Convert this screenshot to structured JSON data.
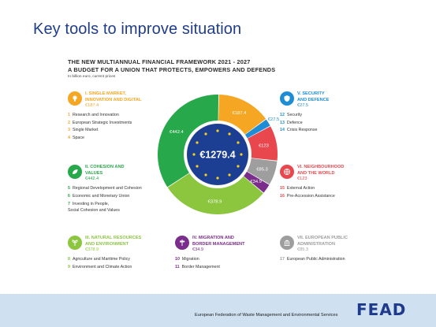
{
  "slide": {
    "title": "Key tools to improve situation"
  },
  "mff": {
    "heading_line1": "THE NEW MULTIANNUAL FINANCIAL FRAMEWORK 2021 - 2027",
    "heading_line2": "A BUDGET FOR A UNION THAT PROTECTS, EMPOWERS AND DEFENDS",
    "units": "In billion euro, current prices"
  },
  "blocks": {
    "single_market": {
      "title_line1": "I. SINGLE MARKET,",
      "title_line2": "INNOVATION AND DIGITAL",
      "amount": "€187.4",
      "color": "#f5a623",
      "icon": "lightbulb-icon",
      "items": [
        {
          "num": "1",
          "label": "Research and Innovation"
        },
        {
          "num": "2",
          "label": "European Strategic Investments"
        },
        {
          "num": "3",
          "label": "Single Market"
        },
        {
          "num": "4",
          "label": "Space"
        }
      ]
    },
    "cohesion": {
      "title_line1": "II. COHESION AND",
      "title_line2": "VALUES",
      "amount": "€442.4",
      "color": "#27a84a",
      "icon": "leaf-icon",
      "items": [
        {
          "num": "5",
          "label": "Regional Development and Cohesion"
        },
        {
          "num": "6",
          "label": "Economic and Monetary Union"
        },
        {
          "num": "7",
          "label": "Investing in People,",
          "label2": "Social Cohesion and Values"
        }
      ]
    },
    "natural_resources": {
      "title_line1": "III. NATURAL RESOURCES",
      "title_line2": "AND ENVIRONMENT",
      "amount": "€378.9",
      "color": "#8cc63f",
      "icon": "sprout-icon",
      "items": [
        {
          "num": "8",
          "label": "Agriculture and Maritime Policy"
        },
        {
          "num": "9",
          "label": "Environment and Climate Action"
        }
      ]
    },
    "migration": {
      "title_line1": "IV. MIGRATION AND",
      "title_line2": "BORDER MANAGEMENT",
      "amount": "€34.9",
      "color": "#7b2d8b",
      "icon": "signpost-icon",
      "items": [
        {
          "num": "10",
          "label": "Migration"
        },
        {
          "num": "11",
          "label": "Border Management"
        }
      ]
    },
    "security": {
      "title_line1": "V. SECURITY",
      "title_line2": "AND DEFENCE",
      "amount": "€27.5",
      "color": "#1f8dd6",
      "icon": "shield-icon",
      "items": [
        {
          "num": "12",
          "label": "Security"
        },
        {
          "num": "13",
          "label": "Defence"
        },
        {
          "num": "14",
          "label": "Crisis Response"
        }
      ]
    },
    "neighbourhood": {
      "title_line1": "VI. NEIGHBOURHOOD",
      "title_line2": "AND THE WORLD",
      "amount": "€123",
      "color": "#e8474e",
      "icon": "globe-icon",
      "items": [
        {
          "num": "15",
          "label": "External Action"
        },
        {
          "num": "16",
          "label": "Pre-Accession Assistance"
        }
      ]
    },
    "administration": {
      "title_line1": "VII. EUROPEAN PUBLIC",
      "title_line2": "ADMINISTRATION",
      "amount": "€85.3",
      "color": "#9e9e9e",
      "icon": "building-icon",
      "items": [
        {
          "num": "17",
          "label": "European Public Administration"
        }
      ]
    }
  },
  "chart_data": {
    "type": "pie",
    "variant": "donut",
    "title": "",
    "total_label": "€1279.4",
    "unit": "billion euro",
    "slices": [
      {
        "label": "€187.4",
        "value": 187.4,
        "color": "#f5a623"
      },
      {
        "label": "€27.5",
        "value": 27.5,
        "color": "#1f8dd6"
      },
      {
        "label": "€123",
        "value": 123,
        "color": "#e8474e"
      },
      {
        "label": "€85.3",
        "value": 85.3,
        "color": "#9e9e9e"
      },
      {
        "label": "€34.9",
        "value": 34.9,
        "color": "#7b2d8b"
      },
      {
        "label": "€378.9",
        "value": 378.9,
        "color": "#8cc63f"
      },
      {
        "label": "€442.4",
        "value": 442.4,
        "color": "#27a84a"
      }
    ]
  },
  "footer": {
    "text": "European Federation of Waste Management and Environmental Services",
    "logo": "FEAD"
  }
}
